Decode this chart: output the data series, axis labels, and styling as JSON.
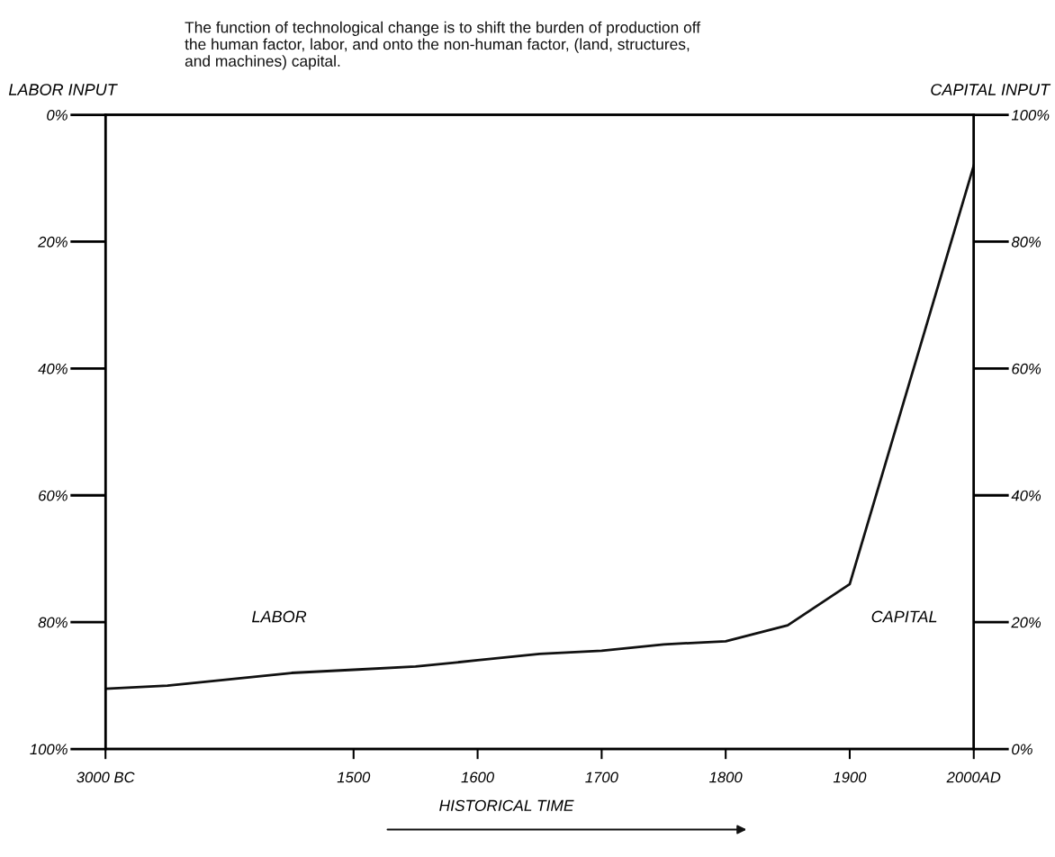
{
  "chart_data": {
    "type": "line",
    "title": "The function of technological change is to shift the burden of production off\nthe human factor, labor, and onto the non-human factor, (land, structures,\nand machines) capital.",
    "ylabel": "LABOR INPUT",
    "y2label": "CAPITAL INPUT",
    "xlabel": "HISTORICAL TIME",
    "annotations": [
      "LABOR",
      "CAPITAL"
    ],
    "categories": [
      "3000 BC",
      null,
      null,
      null,
      "1500",
      null,
      "1600",
      null,
      "1700",
      null,
      "1800",
      null,
      "1900",
      null,
      "2000AD"
    ],
    "series": [
      {
        "color": "#111111",
        "values": [
          90.5,
          90,
          89,
          88,
          87.5,
          87,
          86,
          85,
          84.5,
          83.5,
          83,
          80.5,
          74,
          41,
          8
        ]
      }
    ],
    "ylim": [
      100,
      0
    ],
    "yticks": [
      {
        "value": 0,
        "label": "0%"
      },
      {
        "value": 20,
        "label": "20%"
      },
      {
        "value": 40,
        "label": "40%"
      },
      {
        "value": 60,
        "label": "60%"
      },
      {
        "value": 80,
        "label": "80%"
      },
      {
        "value": 100,
        "label": "100%"
      }
    ],
    "y2lim": [
      0,
      100
    ],
    "y2ticks": [
      {
        "value": 0,
        "label": "0%"
      },
      {
        "value": 20,
        "label": "20%"
      },
      {
        "value": 40,
        "label": "40%"
      },
      {
        "value": 60,
        "label": "60%"
      },
      {
        "value": 80,
        "label": "80%"
      },
      {
        "value": 100,
        "label": "100%"
      }
    ],
    "grid": false,
    "legend": false,
    "line_style": "solid",
    "marker": "none"
  }
}
